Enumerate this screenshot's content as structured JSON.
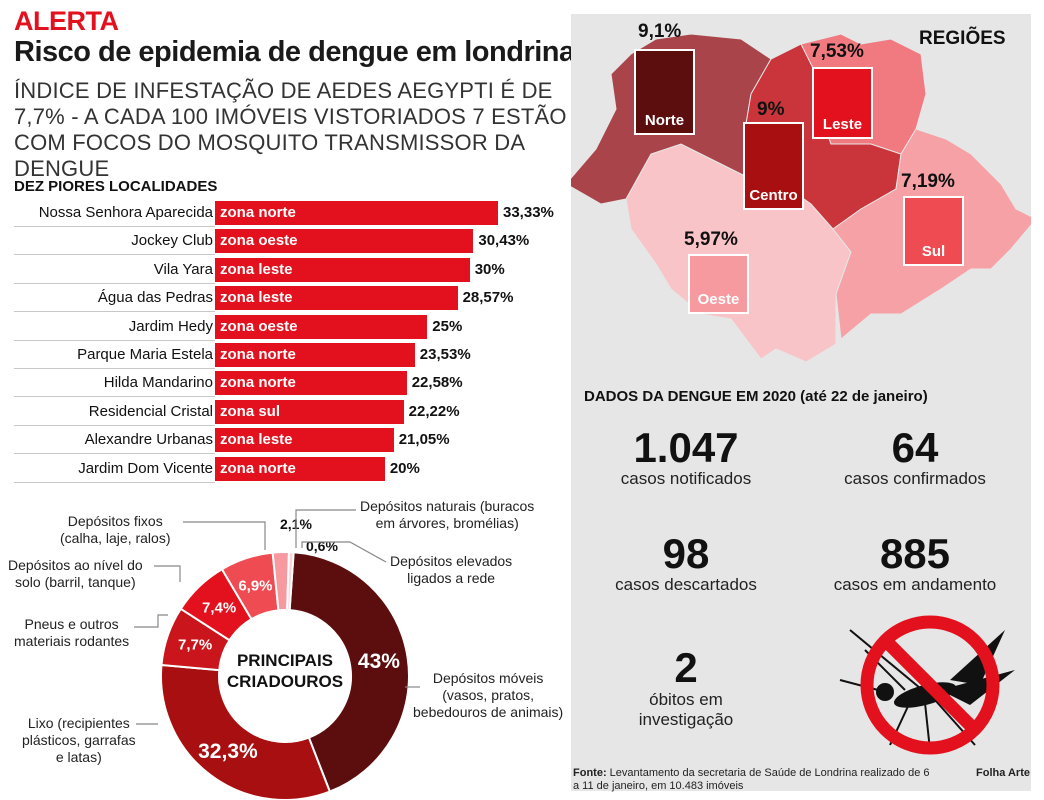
{
  "header": {
    "alert": "ALERTA",
    "title": "Risco de epidemia  de dengue em londrina",
    "subtitle": "ÍNDICE DE INFESTAÇÃO DE AEDES AEGYPTI É DE 7,7% - A CADA 100 IMÓVEIS VISTORIADOS 7 ESTÃO COM FOCOS DO MOSQUITO TRANSMISSOR DA DENGUE"
  },
  "colors": {
    "accent": "#e3101d",
    "panel_bg": "#e6e6e6",
    "norte": "#5c0d0d",
    "centro": "#a80f10",
    "leste": "#e3101d",
    "sul": "#ef4b52",
    "oeste": "#f69aa0"
  },
  "chart_data": [
    {
      "type": "bar",
      "title": "DEZ PIORES LOCALIDADES",
      "categories": [
        "Nossa Senhora Aparecida",
        "Jockey Club",
        "Vila Yara",
        "Água das Pedras",
        "Jardim Hedy",
        "Parque Maria Estela",
        "Hilda Mandarino",
        "Residencial Cristal",
        "Alexandre Urbanas",
        "Jardim Dom Vicente"
      ],
      "zones": [
        "zona norte",
        "zona oeste",
        "zona leste",
        "zona leste",
        "zona oeste",
        "zona norte",
        "zona norte",
        "zona sul",
        "zona leste",
        "zona norte"
      ],
      "values": [
        33.33,
        30.43,
        30,
        28.57,
        25,
        23.53,
        22.58,
        22.22,
        21.05,
        20
      ],
      "value_labels": [
        "33,33%",
        "30,43%",
        "30%",
        "28,57%",
        "25%",
        "23,53%",
        "22,58%",
        "22,22%",
        "21,05%",
        "20%"
      ]
    },
    {
      "type": "pie",
      "title": "PRINCIPAIS CRIADOUROS",
      "slices": [
        {
          "name": "Depósitos móveis (vasos, pratos, bebedouros de animais)",
          "value": 43,
          "label": "43%",
          "color": "#5c0d0d"
        },
        {
          "name": "Lixo (recipientes plásticos, garrafas e latas)",
          "value": 32.3,
          "label": "32,3%",
          "color": "#a80f10"
        },
        {
          "name": "Pneus e outros materiais rodantes",
          "value": 7.7,
          "label": "7,7%",
          "color": "#c9151b"
        },
        {
          "name": "Depósitos ao nível do solo (barril, tanque)",
          "value": 7.4,
          "label": "7,4%",
          "color": "#e3101d"
        },
        {
          "name": "Depósitos fixos (calha, laje, ralos)",
          "value": 6.9,
          "label": "6,9%",
          "color": "#ef4b52"
        },
        {
          "name": "Depósitos naturais (buracos em árvores, bromélias)",
          "value": 2.1,
          "label": "2,1%",
          "color": "#f69aa0"
        },
        {
          "name": "Depósitos elevados ligados a rede",
          "value": 0.6,
          "label": "0,6%",
          "color": "#fbd3d6"
        }
      ],
      "annotations": {
        "moveis": [
          "Depósitos móveis",
          "(vasos, pratos,",
          "bebedouros de animais)"
        ],
        "lixo": [
          "Lixo (recipientes",
          "plásticos, garrafas",
          "e latas)"
        ],
        "pneus": [
          "Pneus e outros",
          "materiais rodantes"
        ],
        "solo": [
          "Depósitos ao nível do",
          "solo (barril, tanque)"
        ],
        "fixos": [
          "Depósitos fixos",
          "(calha, laje, ralos)"
        ],
        "naturais": [
          "Depósitos naturais (buracos",
          "em árvores, bromélias)"
        ],
        "elevados": [
          "Depósitos elevados",
          "ligados a rede"
        ]
      },
      "center": [
        "PRINCIPAIS",
        "CRIADOUROS"
      ]
    }
  ],
  "map": {
    "title": "REGIÕES",
    "regions": [
      {
        "name": "Norte",
        "value": "9,1%"
      },
      {
        "name": "Leste",
        "value": "7,53%"
      },
      {
        "name": "Centro",
        "value": "9%"
      },
      {
        "name": "Sul",
        "value": "7,19%"
      },
      {
        "name": "Oeste",
        "value": "5,97%"
      }
    ]
  },
  "stats": {
    "title": "DADOS DA DENGUE EM 2020 (até 22 de janeiro)",
    "items": [
      {
        "value": "1.047",
        "label": "casos notificados"
      },
      {
        "value": "64",
        "label": "casos confirmados"
      },
      {
        "value": "98",
        "label": "casos descartados"
      },
      {
        "value": "885",
        "label": "casos em andamento"
      },
      {
        "value": "2",
        "label": "óbitos em investigação"
      }
    ]
  },
  "footer": {
    "source_label": "Fonte:",
    "source_text": "Levantamento da secretaria de Saúde de Londrina realizado de 6 a 11 de janeiro, em 10.483 imóveis",
    "credit": "Folha Arte"
  }
}
